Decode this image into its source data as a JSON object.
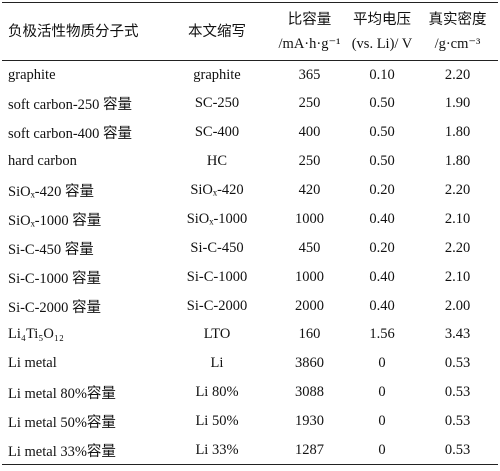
{
  "table": {
    "header": [
      [
        "负极活性物质分子式"
      ],
      [
        "本文缩写"
      ],
      [
        "比容量",
        "/mA·h·g⁻¹"
      ],
      [
        "平均电压",
        "(vs. Li)/ V"
      ],
      [
        "真实密度",
        "/g·cm⁻³"
      ]
    ],
    "rows": [
      [
        "graphite",
        "graphite",
        "365",
        "0.10",
        "2.20"
      ],
      [
        "soft carbon-250 容量",
        "SC-250",
        "250",
        "0.50",
        "1.90"
      ],
      [
        "soft carbon-400 容量",
        "SC-400",
        "400",
        "0.50",
        "1.80"
      ],
      [
        "hard carbon",
        "HC",
        "250",
        "0.50",
        "1.80"
      ],
      [
        "SiOₓ-420 容量",
        "SiOₓ-420",
        "420",
        "0.20",
        "2.20"
      ],
      [
        "SiOₓ-1000 容量",
        "SiOₓ-1000",
        "1000",
        "0.40",
        "2.10"
      ],
      [
        "Si-C-450 容量",
        "Si-C-450",
        "450",
        "0.20",
        "2.20"
      ],
      [
        "Si-C-1000 容量",
        "Si-C-1000",
        "1000",
        "0.40",
        "2.10"
      ],
      [
        "Si-C-2000 容量",
        "Si-C-2000",
        "2000",
        "0.40",
        "2.00"
      ],
      [
        "Li₄Ti₅O₁₂",
        "LTO",
        "160",
        "1.56",
        "3.43"
      ],
      [
        "Li metal",
        "Li",
        "3860",
        "0",
        "0.53"
      ],
      [
        "Li metal 80%容量",
        "Li 80%",
        "3088",
        "0",
        "0.53"
      ],
      [
        "Li metal 50%容量",
        "Li 50%",
        "1930",
        "0",
        "0.53"
      ],
      [
        "Li metal 33%容量",
        "Li 33%",
        "1287",
        "0",
        "0.53"
      ]
    ]
  }
}
